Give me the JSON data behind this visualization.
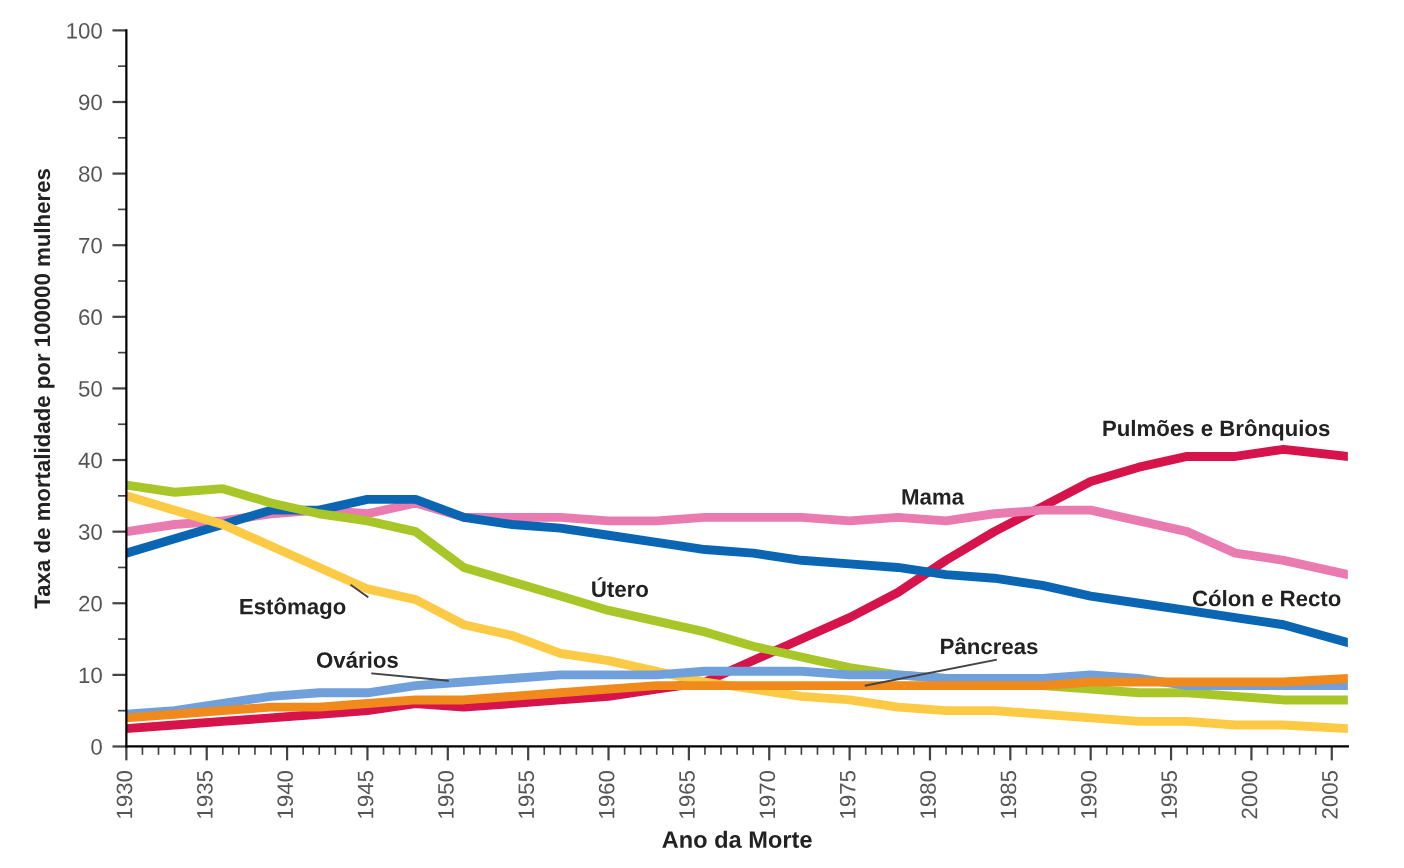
{
  "chart_data": {
    "type": "line",
    "xlabel": "Ano da Morte",
    "ylabel": "Taxa de mortalidade por 100000 mulheres",
    "x": [
      1930,
      1933,
      1936,
      1939,
      1942,
      1945,
      1948,
      1951,
      1954,
      1957,
      1960,
      1963,
      1966,
      1969,
      1972,
      1975,
      1978,
      1981,
      1984,
      1987,
      1990,
      1993,
      1996,
      1999,
      2002,
      2006
    ],
    "series": [
      {
        "name": "Pulmões e Brônquios",
        "color": "#d6134a",
        "values": [
          2.5,
          3,
          3.5,
          4,
          4.5,
          5,
          6,
          5.5,
          6,
          6.5,
          7,
          8,
          9,
          12,
          15,
          18,
          21.5,
          26,
          30,
          33.5,
          37,
          39,
          40.5,
          40.5,
          41.5,
          40.5
        ]
      },
      {
        "name": "Mama",
        "color": "#e97bb0",
        "values": [
          30,
          31,
          31.5,
          32.5,
          33,
          32.5,
          34,
          32,
          32,
          32,
          31.5,
          31.5,
          32,
          32,
          32,
          31.5,
          32,
          31.5,
          32.5,
          33,
          33,
          31.5,
          30,
          27,
          26,
          24
        ]
      },
      {
        "name": "Cólon e Recto",
        "color": "#0a66b3",
        "values": [
          27,
          29,
          31,
          33,
          33,
          34.5,
          34.5,
          32,
          31,
          30.5,
          29.5,
          28.5,
          27.5,
          27,
          26,
          25.5,
          25,
          24,
          23.5,
          22.5,
          21,
          20,
          19,
          18,
          17,
          14.5
        ]
      },
      {
        "name": "Útero",
        "color": "#a9c629",
        "values": [
          36.5,
          35.5,
          36,
          34,
          32.5,
          31.5,
          30,
          25,
          23,
          21,
          19,
          17.5,
          16,
          14,
          12.5,
          11,
          10,
          9.5,
          9,
          8.5,
          8,
          7.5,
          7.5,
          7,
          6.5,
          6.5
        ]
      },
      {
        "name": "Estômago",
        "color": "#fdca45",
        "values": [
          35,
          33,
          31,
          28,
          25,
          22,
          20.5,
          17,
          15.5,
          13,
          12,
          10.5,
          9,
          8,
          7,
          6.5,
          5.5,
          5,
          5,
          4.5,
          4,
          3.5,
          3.5,
          3,
          3,
          2.5
        ]
      },
      {
        "name": "Ovários",
        "color": "#6fa0dc",
        "values": [
          4.5,
          5,
          6,
          7,
          7.5,
          7.5,
          8.5,
          9,
          9.5,
          10,
          10,
          10,
          10.5,
          10.5,
          10.5,
          10,
          10,
          9.5,
          9.5,
          9.5,
          10,
          9.5,
          8.5,
          8.5,
          8.5,
          8.5
        ]
      },
      {
        "name": "Pâncreas",
        "color": "#f08a1c",
        "values": [
          4,
          4.5,
          5,
          5.5,
          5.5,
          6,
          6.5,
          6.5,
          7,
          7.5,
          8,
          8.5,
          8.5,
          8.5,
          8.5,
          8.5,
          8.5,
          8.5,
          8.5,
          8.5,
          9,
          9,
          9,
          9,
          9,
          9.5
        ]
      }
    ],
    "xlim": [
      1930,
      2006
    ],
    "xticks": [
      1930,
      1935,
      1940,
      1945,
      1950,
      1955,
      1960,
      1965,
      1970,
      1975,
      1980,
      1985,
      1990,
      1995,
      2000,
      2005
    ],
    "ylim": [
      0,
      100
    ],
    "yticks": [
      0,
      10,
      20,
      30,
      40,
      50,
      60,
      70,
      80,
      90,
      100
    ],
    "grid": false,
    "legend": false,
    "marker": "none",
    "line_style": "solid"
  }
}
